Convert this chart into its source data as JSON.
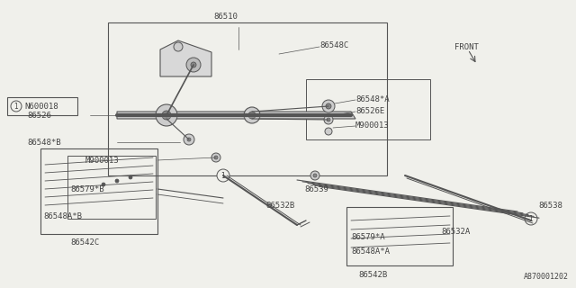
{
  "bg_color": "#f0f0eb",
  "line_color": "#555555",
  "text_color": "#444444",
  "diagram_number": "A870001202",
  "note_label": "N600018",
  "front_label": "FRONT"
}
